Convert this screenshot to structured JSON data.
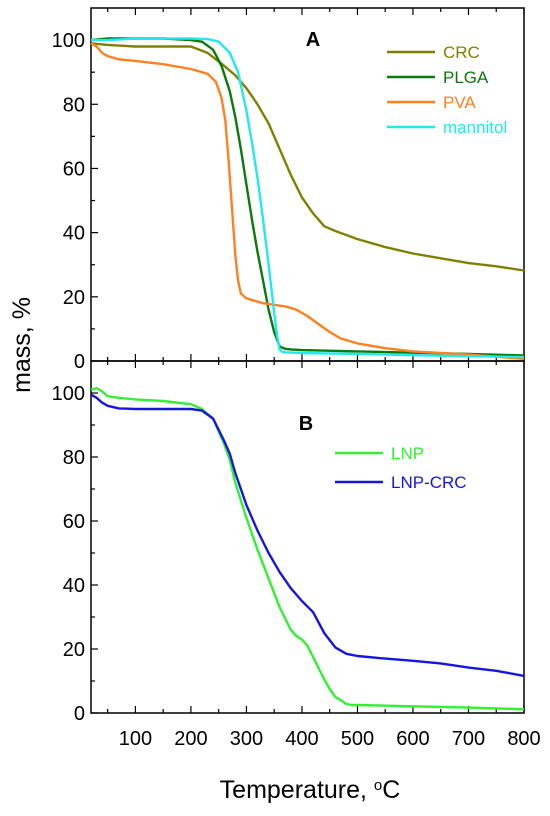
{
  "chart_data": [
    {
      "type": "line",
      "panel_label": "A",
      "xlabel": "",
      "ylabel": "mass, %",
      "xlim": [
        20,
        800
      ],
      "ylim": [
        0,
        110
      ],
      "y_ticks": [
        0,
        20,
        40,
        60,
        80,
        100
      ],
      "legend_position": "top-right",
      "series": [
        {
          "name": "CRC",
          "color": "#808000",
          "x": [
            20,
            50,
            100,
            150,
            200,
            230,
            260,
            280,
            300,
            320,
            340,
            360,
            380,
            400,
            420,
            440,
            460,
            500,
            550,
            600,
            650,
            700,
            750,
            800
          ],
          "y": [
            99,
            98.5,
            98,
            98,
            98,
            96,
            92,
            89,
            85,
            80,
            74,
            66,
            58,
            51,
            46,
            42,
            40.5,
            38,
            35.5,
            33.5,
            32,
            30.5,
            29.5,
            28.2
          ]
        },
        {
          "name": "PLGA",
          "color": "#0a7a0a",
          "x": [
            20,
            50,
            100,
            150,
            200,
            220,
            240,
            255,
            270,
            280,
            290,
            300,
            310,
            320,
            330,
            340,
            350,
            360,
            370,
            380,
            400,
            500,
            600,
            700,
            800
          ],
          "y": [
            100,
            100.5,
            100.5,
            100.5,
            100,
            99.5,
            97,
            92,
            84,
            76,
            66,
            55,
            44,
            34,
            25,
            16,
            9,
            4.5,
            3.8,
            3.6,
            3.4,
            3,
            2.6,
            2.2,
            1.7
          ]
        },
        {
          "name": "PVA",
          "color": "#ff8020",
          "x": [
            20,
            30,
            40,
            50,
            70,
            100,
            150,
            200,
            230,
            245,
            255,
            262,
            268,
            275,
            280,
            285,
            290,
            300,
            310,
            330,
            350,
            370,
            390,
            410,
            430,
            450,
            470,
            500,
            550,
            600,
            650,
            700,
            750,
            800
          ],
          "y": [
            99,
            98,
            96,
            95,
            94,
            93.5,
            92.5,
            91,
            89.5,
            87,
            82,
            75,
            62,
            45,
            33,
            25,
            21,
            19.5,
            19,
            18,
            17.5,
            17,
            16,
            14,
            11.5,
            9,
            7,
            5.5,
            4,
            3,
            2.5,
            2,
            1.3,
            0.7
          ]
        },
        {
          "name": "mannitol",
          "color": "#22e8f0",
          "x": [
            20,
            50,
            100,
            150,
            200,
            230,
            250,
            270,
            285,
            300,
            310,
            320,
            330,
            340,
            350,
            355,
            360,
            365,
            370,
            400,
            500,
            600,
            700,
            800
          ],
          "y": [
            100,
            100,
            100.5,
            100.5,
            100.5,
            100.3,
            99.5,
            96,
            90,
            78,
            68,
            57,
            44,
            30,
            15,
            8,
            3.5,
            2.8,
            2.7,
            2.5,
            2.2,
            1.8,
            1.5,
            1.2
          ]
        }
      ]
    },
    {
      "type": "line",
      "panel_label": "B",
      "xlabel": "Temperature, °C",
      "ylabel": "",
      "xlim": [
        20,
        800
      ],
      "ylim": [
        0,
        110
      ],
      "x_ticks": [
        100,
        200,
        300,
        400,
        500,
        600,
        700,
        800
      ],
      "y_ticks": [
        0,
        20,
        40,
        60,
        80,
        100
      ],
      "legend_position": "top-right",
      "series": [
        {
          "name": "LNP",
          "color": "#32f032",
          "x": [
            20,
            30,
            40,
            50,
            70,
            100,
            150,
            200,
            220,
            240,
            260,
            270,
            280,
            300,
            320,
            340,
            360,
            380,
            390,
            400,
            410,
            420,
            440,
            450,
            460,
            470,
            480,
            490,
            500,
            600,
            700,
            800
          ],
          "y": [
            101,
            101.5,
            100.5,
            99,
            98.5,
            98,
            97.5,
            96.5,
            95,
            92,
            84,
            79,
            72,
            61,
            51,
            42,
            33,
            26,
            24,
            23,
            21,
            17.5,
            10.5,
            7.5,
            5,
            4,
            2.8,
            2.5,
            2.5,
            2.1,
            1.7,
            1.2
          ]
        },
        {
          "name": "LNP-CRC",
          "color": "#1515dd",
          "x": [
            20,
            30,
            40,
            50,
            70,
            100,
            150,
            200,
            220,
            240,
            260,
            270,
            280,
            300,
            320,
            340,
            360,
            380,
            400,
            420,
            440,
            460,
            480,
            500,
            550,
            600,
            650,
            700,
            750,
            800
          ],
          "y": [
            99.5,
            98.5,
            97,
            96,
            95.2,
            95,
            95,
            95,
            94.5,
            92,
            85,
            81,
            75,
            65,
            57,
            50,
            44,
            39,
            35,
            31.5,
            25,
            20.5,
            18.5,
            17.8,
            17,
            16.3,
            15.5,
            14.2,
            13.2,
            11.6
          ]
        }
      ]
    }
  ]
}
